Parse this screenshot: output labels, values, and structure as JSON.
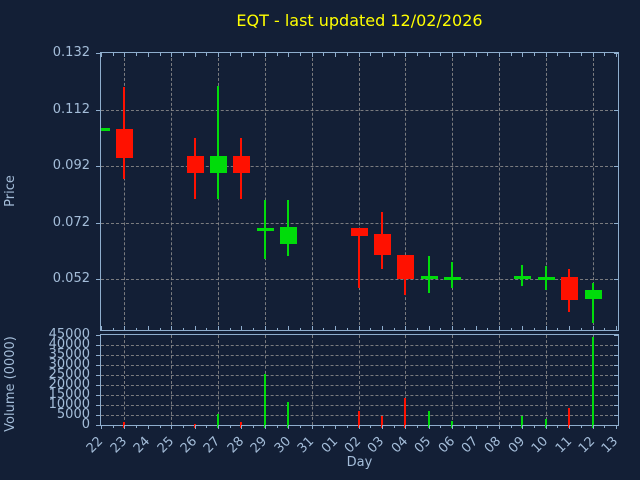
{
  "title": {
    "text": "EQT - last updated 12/02/2026"
  },
  "colors": {
    "background": "#131F36",
    "frame": "#8FAECE",
    "text": "#A4BDD9",
    "title_text": "#FFFF00",
    "grid": "#8C8C8C",
    "up": "#00DC0A",
    "down": "#FF1100"
  },
  "axes": {
    "price": {
      "label": "Price",
      "tick_labels": [
        "0.132",
        "0.112",
        "0.092",
        "0.072",
        "0.052"
      ]
    },
    "volume": {
      "label": "Volume (0000)",
      "tick_labels": [
        "45000",
        "40000",
        "35000",
        "30000",
        "25000",
        "20000",
        "15000",
        "10000",
        "5000",
        "0"
      ]
    },
    "x": {
      "label": "Day",
      "tick_labels": [
        "22",
        "23",
        "24",
        "25",
        "26",
        "27",
        "28",
        "29",
        "30",
        "31",
        "01",
        "02",
        "03",
        "04",
        "05",
        "06",
        "07",
        "08",
        "09",
        "10",
        "11",
        "12",
        "13"
      ]
    }
  },
  "chart_data": {
    "type": "candlestick",
    "title": "EQT - last updated 12/02/2026",
    "xlabel": "Day",
    "ylabel": "Price",
    "ylabel2": "Volume (0000)",
    "legend_position": "none",
    "grid": "dashed, every price tick and every 2nd day",
    "x_categories": [
      "22",
      "23",
      "24",
      "25",
      "26",
      "27",
      "28",
      "29",
      "30",
      "31",
      "01",
      "02",
      "03",
      "04",
      "05",
      "06",
      "07",
      "08",
      "09",
      "10",
      "11",
      "12",
      "13"
    ],
    "price_axis": {
      "ticks": [
        0.132,
        0.112,
        0.092,
        0.072,
        0.052
      ],
      "ylim": [
        0.034,
        0.132
      ]
    },
    "volume_axis": {
      "ticks": [
        45000,
        40000,
        35000,
        30000,
        25000,
        20000,
        15000,
        10000,
        5000,
        0
      ],
      "ylim": [
        0,
        45000
      ]
    },
    "gridline_days": [
      "23",
      "25",
      "27",
      "29",
      "31",
      "02",
      "04",
      "06",
      "08",
      "10",
      "12"
    ],
    "candles": [
      {
        "day": "22",
        "open": 0.105,
        "high": 0.105,
        "low": 0.105,
        "close": 0.105,
        "volume": null
      },
      {
        "day": "23",
        "open": 0.105,
        "high": 0.12,
        "low": 0.0875,
        "close": 0.095,
        "volume": 1300
      },
      {
        "day": "26",
        "open": 0.0955,
        "high": 0.102,
        "low": 0.0805,
        "close": 0.0895,
        "volume": 600
      },
      {
        "day": "27",
        "open": 0.0895,
        "high": 0.1205,
        "low": 0.0805,
        "close": 0.0955,
        "volume": 5600
      },
      {
        "day": "28",
        "open": 0.0955,
        "high": 0.102,
        "low": 0.0805,
        "close": 0.0895,
        "volume": 1600
      },
      {
        "day": "29",
        "open": 0.0695,
        "high": 0.08,
        "low": 0.059,
        "close": 0.0695,
        "volume": 25300
      },
      {
        "day": "30",
        "open": 0.0645,
        "high": 0.08,
        "low": 0.06,
        "close": 0.0705,
        "volume": 11600
      },
      {
        "day": "02",
        "open": 0.07,
        "high": 0.07,
        "low": 0.049,
        "close": 0.0672,
        "volume": 6800
      },
      {
        "day": "03",
        "open": 0.068,
        "high": 0.0758,
        "low": 0.0555,
        "close": 0.0605,
        "volume": 4400
      },
      {
        "day": "04",
        "open": 0.0605,
        "high": 0.0605,
        "low": 0.0465,
        "close": 0.0522,
        "volume": 13500
      },
      {
        "day": "05",
        "open": 0.0525,
        "high": 0.0603,
        "low": 0.047,
        "close": 0.0525,
        "volume": 7200
      },
      {
        "day": "06",
        "open": 0.0523,
        "high": 0.058,
        "low": 0.049,
        "close": 0.0523,
        "volume": 1900
      },
      {
        "day": "09",
        "open": 0.0524,
        "high": 0.057,
        "low": 0.0497,
        "close": 0.0524,
        "volume": 4400
      },
      {
        "day": "10",
        "open": 0.0523,
        "high": 0.0567,
        "low": 0.048,
        "close": 0.0523,
        "volume": 3200
      },
      {
        "day": "11",
        "open": 0.0527,
        "high": 0.0557,
        "low": 0.0405,
        "close": 0.0445,
        "volume": 8400
      },
      {
        "day": "12",
        "open": 0.045,
        "high": 0.0505,
        "low": 0.0365,
        "close": 0.048,
        "volume": 44200
      }
    ]
  }
}
